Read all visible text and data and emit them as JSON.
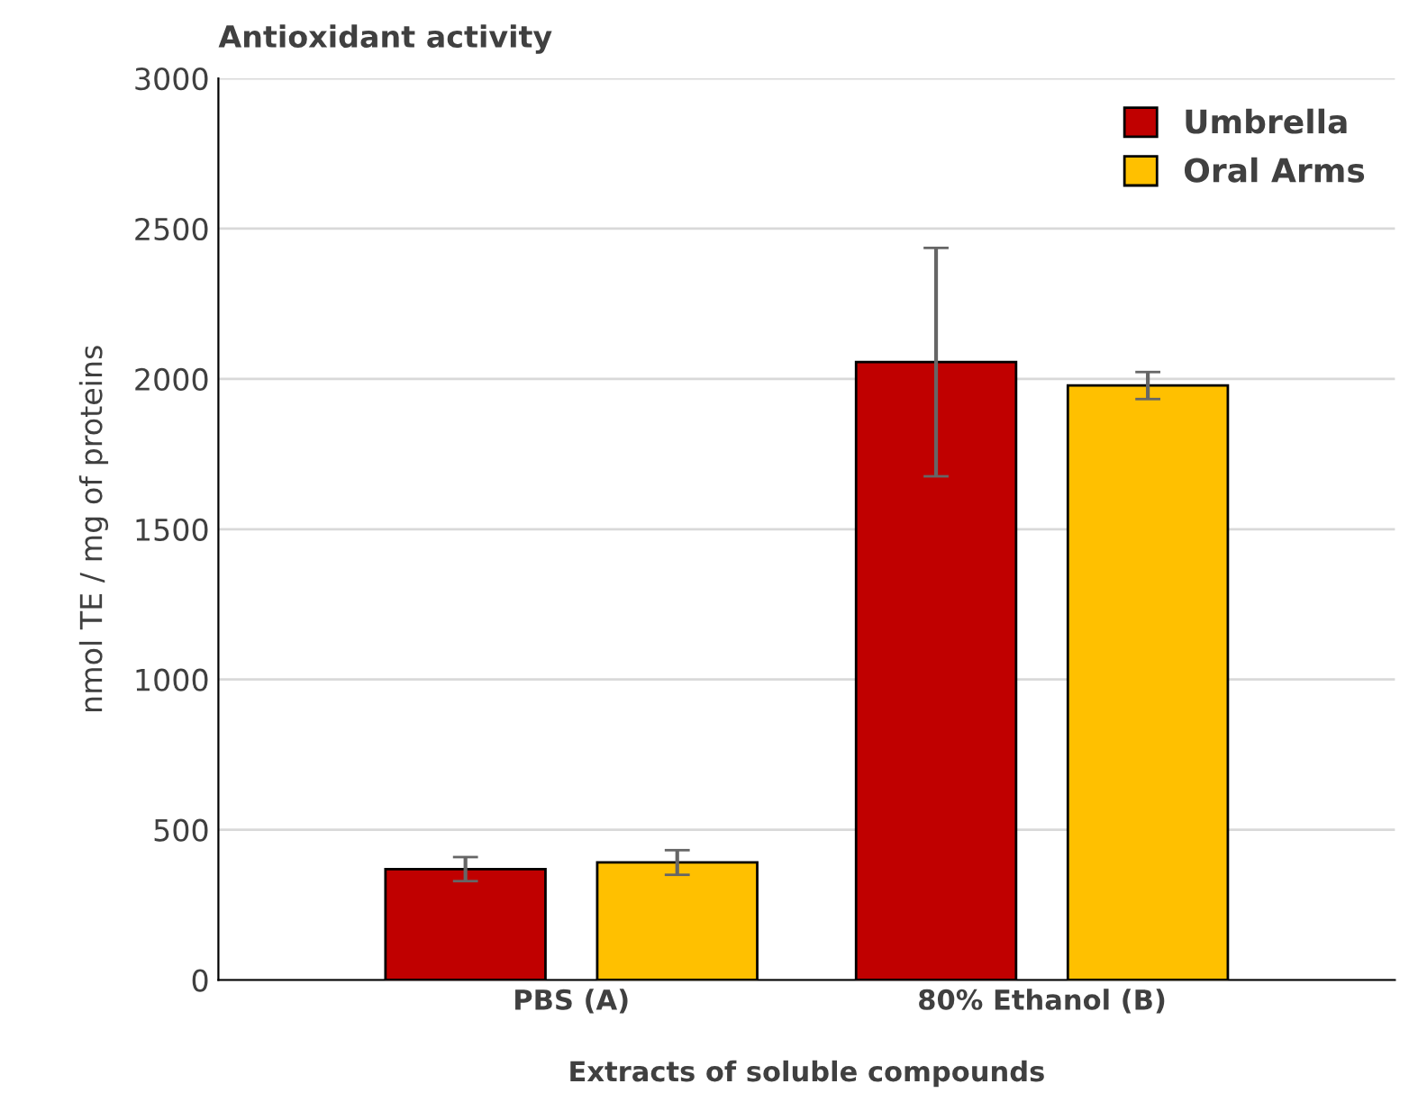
{
  "chart_data": {
    "type": "bar",
    "title": "Antioxidant activity",
    "xlabel": "Extracts of soluble compounds",
    "ylabel": "nmol TE / mg of proteins",
    "categories": [
      "PBS (A)",
      "80% Ethanol (B)"
    ],
    "series": [
      {
        "name": "Umbrella",
        "color": "#c00000",
        "values": [
          369,
          2056
        ],
        "errors": [
          40,
          380
        ]
      },
      {
        "name": "Oral Arms",
        "color": "#ffc000",
        "values": [
          391,
          1978
        ],
        "errors": [
          41,
          45
        ]
      }
    ],
    "ylim": [
      0,
      3000
    ],
    "yticks": [
      0,
      500,
      1000,
      1500,
      2000,
      2500,
      3000
    ],
    "grid": "y",
    "legend": "top right"
  }
}
